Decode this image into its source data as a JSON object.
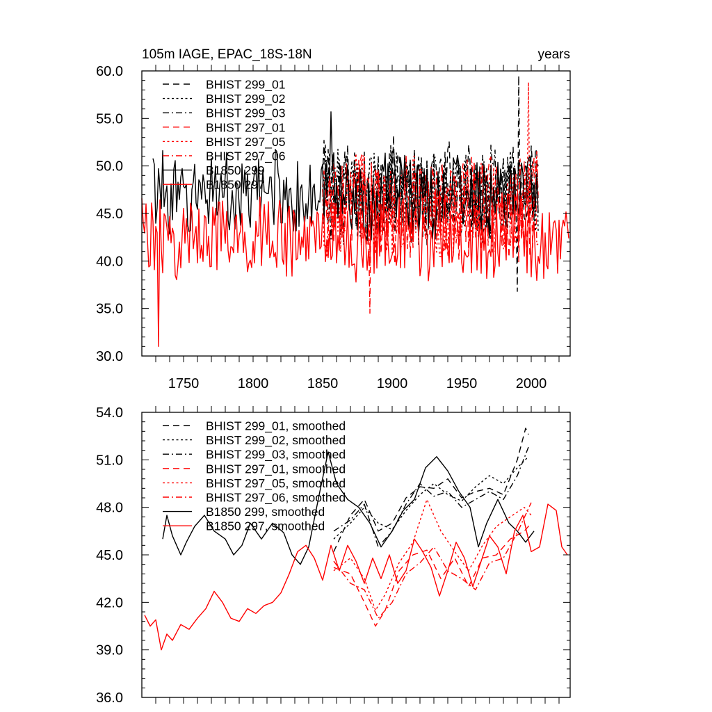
{
  "chart_data": [
    {
      "type": "line",
      "title": "105m IAGE, EPAC_18S-18N",
      "title_right": "years",
      "xlabel": "",
      "ylabel": "",
      "xlim": [
        1720,
        2028
      ],
      "ylim": [
        30,
        60
      ],
      "xticks": [
        "1750",
        "1800",
        "1850",
        "1900",
        "1950",
        "2000"
      ],
      "yticks": [
        "30.0",
        "35.0",
        "40.0",
        "45.0",
        "50.0",
        "55.0",
        "60.0"
      ],
      "legend_position": "top-left",
      "series": [
        {
          "name": "BHIST 299_01",
          "color": "#000000",
          "dash": "long-dash",
          "x_start": 1850,
          "x_end": 2005,
          "mean": 47.5,
          "amp": 4.2,
          "peak": [
            1991,
            59.5
          ],
          "trough": [
            1990,
            36.8
          ]
        },
        {
          "name": "BHIST 299_02",
          "color": "#000000",
          "dash": "dot",
          "x_start": 1850,
          "x_end": 2005,
          "mean": 47.2,
          "amp": 4.0
        },
        {
          "name": "BHIST 299_03",
          "color": "#000000",
          "dash": "dash-dot",
          "x_start": 1850,
          "x_end": 2005,
          "mean": 47.0,
          "amp": 4.0
        },
        {
          "name": "BHIST 297_01",
          "color": "#ff0000",
          "dash": "long-dash",
          "x_start": 1850,
          "x_end": 2005,
          "mean": 45.5,
          "amp": 4.3,
          "trough": [
            1884,
            34.5
          ]
        },
        {
          "name": "BHIST 297_05",
          "color": "#ff0000",
          "dash": "dot",
          "x_start": 1850,
          "x_end": 2005,
          "mean": 45.8,
          "amp": 4.2,
          "peak": [
            1998,
            58.8
          ]
        },
        {
          "name": "BHIST 297_06",
          "color": "#ff0000",
          "dash": "dash-dot",
          "x_start": 1850,
          "x_end": 2005,
          "mean": 45.6,
          "amp": 4.2
        },
        {
          "name": "B1850 299",
          "color": "#000000",
          "dash": "solid",
          "x_start": 1728,
          "x_end": 2005,
          "mean": 47.0,
          "amp": 3.6,
          "peak": [
            1856,
            55.7
          ]
        },
        {
          "name": "B1850 297",
          "color": "#ff0000",
          "dash": "solid",
          "x_start": 1720,
          "x_end": 2027,
          "mean": 42.5,
          "amp": 3.6,
          "trough": [
            1732,
            31.0
          ]
        }
      ]
    },
    {
      "type": "line",
      "title": "",
      "xlabel": "",
      "ylabel": "",
      "xlim": [
        1720,
        2028
      ],
      "ylim": [
        36,
        54
      ],
      "xticks": [],
      "yticks": [
        "36.0",
        "39.0",
        "42.0",
        "45.0",
        "48.0",
        "51.0",
        "54.0"
      ],
      "legend_position": "top-left",
      "series": [
        {
          "name": "BHIST 299_01, smoothed",
          "color": "#000000",
          "dash": "long-dash",
          "x_start": 1858,
          "x_end": 1998,
          "points": [
            [
              1858,
              45.2
            ],
            [
              1870,
              47.5
            ],
            [
              1880,
              48.5
            ],
            [
              1890,
              46.5
            ],
            [
              1900,
              47.0
            ],
            [
              1910,
              48.6
            ],
            [
              1920,
              49.3
            ],
            [
              1930,
              49.2
            ],
            [
              1940,
              49.8
            ],
            [
              1950,
              48.6
            ],
            [
              1960,
              49.0
            ],
            [
              1970,
              49.2
            ],
            [
              1980,
              48.8
            ],
            [
              1990,
              51.0
            ],
            [
              1996,
              53.0
            ],
            [
              1998,
              52.6
            ]
          ]
        },
        {
          "name": "BHIST 299_02, smoothed",
          "color": "#000000",
          "dash": "dot",
          "x_start": 1858,
          "x_end": 1998,
          "points": [
            [
              1858,
              46.0
            ],
            [
              1870,
              47.0
            ],
            [
              1880,
              48.0
            ],
            [
              1890,
              47.0
            ],
            [
              1900,
              46.6
            ],
            [
              1910,
              47.8
            ],
            [
              1920,
              48.8
            ],
            [
              1930,
              49.5
            ],
            [
              1940,
              48.8
            ],
            [
              1950,
              48.4
            ],
            [
              1960,
              49.3
            ],
            [
              1970,
              50.0
            ],
            [
              1980,
              49.5
            ],
            [
              1990,
              50.5
            ],
            [
              1998,
              51.2
            ]
          ]
        },
        {
          "name": "BHIST 299_03, smoothed",
          "color": "#000000",
          "dash": "dash-dot",
          "x_start": 1858,
          "x_end": 1998,
          "points": [
            [
              1858,
              46.5
            ],
            [
              1870,
              47.2
            ],
            [
              1880,
              48.2
            ],
            [
              1890,
              45.5
            ],
            [
              1900,
              46.5
            ],
            [
              1910,
              48.2
            ],
            [
              1920,
              49.5
            ],
            [
              1930,
              48.7
            ],
            [
              1940,
              49.0
            ],
            [
              1950,
              48.0
            ],
            [
              1960,
              48.5
            ],
            [
              1970,
              49.0
            ],
            [
              1980,
              48.5
            ],
            [
              1990,
              50.0
            ],
            [
              1998,
              51.8
            ]
          ]
        },
        {
          "name": "BHIST 297_01, smoothed",
          "color": "#ff0000",
          "dash": "long-dash",
          "x_start": 1858,
          "x_end": 2000,
          "points": [
            [
              1858,
              44.2
            ],
            [
              1870,
              43.8
            ],
            [
              1880,
              42.0
            ],
            [
              1888,
              40.5
            ],
            [
              1895,
              41.5
            ],
            [
              1905,
              44.0
            ],
            [
              1915,
              45.0
            ],
            [
              1925,
              45.3
            ],
            [
              1935,
              43.5
            ],
            [
              1945,
              44.8
            ],
            [
              1955,
              43.0
            ],
            [
              1965,
              44.8
            ],
            [
              1975,
              45.0
            ],
            [
              1985,
              46.0
            ],
            [
              1995,
              46.5
            ],
            [
              2000,
              47.0
            ]
          ]
        },
        {
          "name": "BHIST 297_05, smoothed",
          "color": "#ff0000",
          "dash": "dot",
          "x_start": 1858,
          "x_end": 2000,
          "points": [
            [
              1858,
              44.0
            ],
            [
              1870,
              44.8
            ],
            [
              1880,
              43.5
            ],
            [
              1888,
              41.5
            ],
            [
              1895,
              42.5
            ],
            [
              1905,
              44.5
            ],
            [
              1915,
              45.8
            ],
            [
              1925,
              48.5
            ],
            [
              1935,
              46.5
            ],
            [
              1945,
              45.2
            ],
            [
              1955,
              44.0
            ],
            [
              1965,
              45.6
            ],
            [
              1975,
              46.8
            ],
            [
              1985,
              47.4
            ],
            [
              1995,
              48.0
            ],
            [
              2000,
              47.5
            ]
          ]
        },
        {
          "name": "BHIST 297_06, smoothed",
          "color": "#ff0000",
          "dash": "dash-dot",
          "x_start": 1858,
          "x_end": 2000,
          "points": [
            [
              1858,
              44.6
            ],
            [
              1870,
              43.2
            ],
            [
              1880,
              42.8
            ],
            [
              1890,
              41.0
            ],
            [
              1900,
              42.0
            ],
            [
              1910,
              43.8
            ],
            [
              1920,
              44.5
            ],
            [
              1930,
              45.5
            ],
            [
              1940,
              44.0
            ],
            [
              1950,
              43.5
            ],
            [
              1960,
              42.8
            ],
            [
              1970,
              44.5
            ],
            [
              1980,
              44.8
            ],
            [
              1990,
              46.4
            ],
            [
              2000,
              48.3
            ]
          ]
        },
        {
          "name": "B1850 299, smoothed",
          "color": "#000000",
          "dash": "solid",
          "x_start": 1735,
          "x_end": 2002,
          "points": [
            [
              1735,
              46.0
            ],
            [
              1738,
              47.5
            ],
            [
              1742,
              46.2
            ],
            [
              1748,
              45.0
            ],
            [
              1752,
              45.8
            ],
            [
              1758,
              46.8
            ],
            [
              1765,
              47.5
            ],
            [
              1772,
              46.5
            ],
            [
              1780,
              46.0
            ],
            [
              1786,
              45.0
            ],
            [
              1792,
              45.6
            ],
            [
              1798,
              47.0
            ],
            [
              1806,
              46.0
            ],
            [
              1814,
              47.0
            ],
            [
              1822,
              46.4
            ],
            [
              1828,
              45.0
            ],
            [
              1834,
              44.4
            ],
            [
              1840,
              45.5
            ],
            [
              1848,
              49.0
            ],
            [
              1854,
              51.5
            ],
            [
              1860,
              49.5
            ],
            [
              1868,
              48.5
            ],
            [
              1876,
              48.0
            ],
            [
              1884,
              47.0
            ],
            [
              1892,
              45.5
            ],
            [
              1900,
              46.5
            ],
            [
              1908,
              47.8
            ],
            [
              1916,
              48.5
            ],
            [
              1924,
              50.5
            ],
            [
              1932,
              51.2
            ],
            [
              1940,
              50.3
            ],
            [
              1948,
              49.0
            ],
            [
              1956,
              48.0
            ],
            [
              1962,
              45.5
            ],
            [
              1968,
              47.0
            ],
            [
              1976,
              48.5
            ],
            [
              1984,
              47.0
            ],
            [
              1990,
              46.5
            ],
            [
              1996,
              45.8
            ],
            [
              2002,
              46.5
            ]
          ]
        },
        {
          "name": "B1850 297, smoothed",
          "color": "#ff0000",
          "dash": "solid",
          "x_start": 1722,
          "x_end": 2026,
          "points": [
            [
              1722,
              41.2
            ],
            [
              1726,
              40.5
            ],
            [
              1730,
              40.9
            ],
            [
              1734,
              39.0
            ],
            [
              1738,
              40.0
            ],
            [
              1742,
              39.6
            ],
            [
              1748,
              40.6
            ],
            [
              1754,
              40.3
            ],
            [
              1760,
              41.0
            ],
            [
              1766,
              41.6
            ],
            [
              1772,
              42.7
            ],
            [
              1778,
              42.0
            ],
            [
              1784,
              41.0
            ],
            [
              1790,
              40.8
            ],
            [
              1796,
              41.6
            ],
            [
              1802,
              41.3
            ],
            [
              1808,
              41.8
            ],
            [
              1814,
              42.0
            ],
            [
              1820,
              42.6
            ],
            [
              1826,
              43.8
            ],
            [
              1832,
              45.2
            ],
            [
              1838,
              45.6
            ],
            [
              1844,
              44.8
            ],
            [
              1850,
              43.4
            ],
            [
              1856,
              45.6
            ],
            [
              1862,
              44.0
            ],
            [
              1868,
              45.6
            ],
            [
              1874,
              44.6
            ],
            [
              1880,
              43.2
            ],
            [
              1886,
              44.8
            ],
            [
              1892,
              43.5
            ],
            [
              1898,
              45.0
            ],
            [
              1904,
              43.2
            ],
            [
              1910,
              44.0
            ],
            [
              1916,
              46.0
            ],
            [
              1922,
              45.2
            ],
            [
              1928,
              44.2
            ],
            [
              1934,
              42.4
            ],
            [
              1940,
              44.0
            ],
            [
              1946,
              45.8
            ],
            [
              1952,
              44.8
            ],
            [
              1958,
              43.0
            ],
            [
              1964,
              44.6
            ],
            [
              1970,
              46.2
            ],
            [
              1976,
              45.5
            ],
            [
              1982,
              43.8
            ],
            [
              1988,
              46.5
            ],
            [
              1994,
              47.5
            ],
            [
              2000,
              45.2
            ],
            [
              2006,
              45.5
            ],
            [
              2012,
              48.2
            ],
            [
              2018,
              47.8
            ],
            [
              2022,
              45.5
            ],
            [
              2026,
              45.0
            ]
          ]
        }
      ]
    }
  ]
}
